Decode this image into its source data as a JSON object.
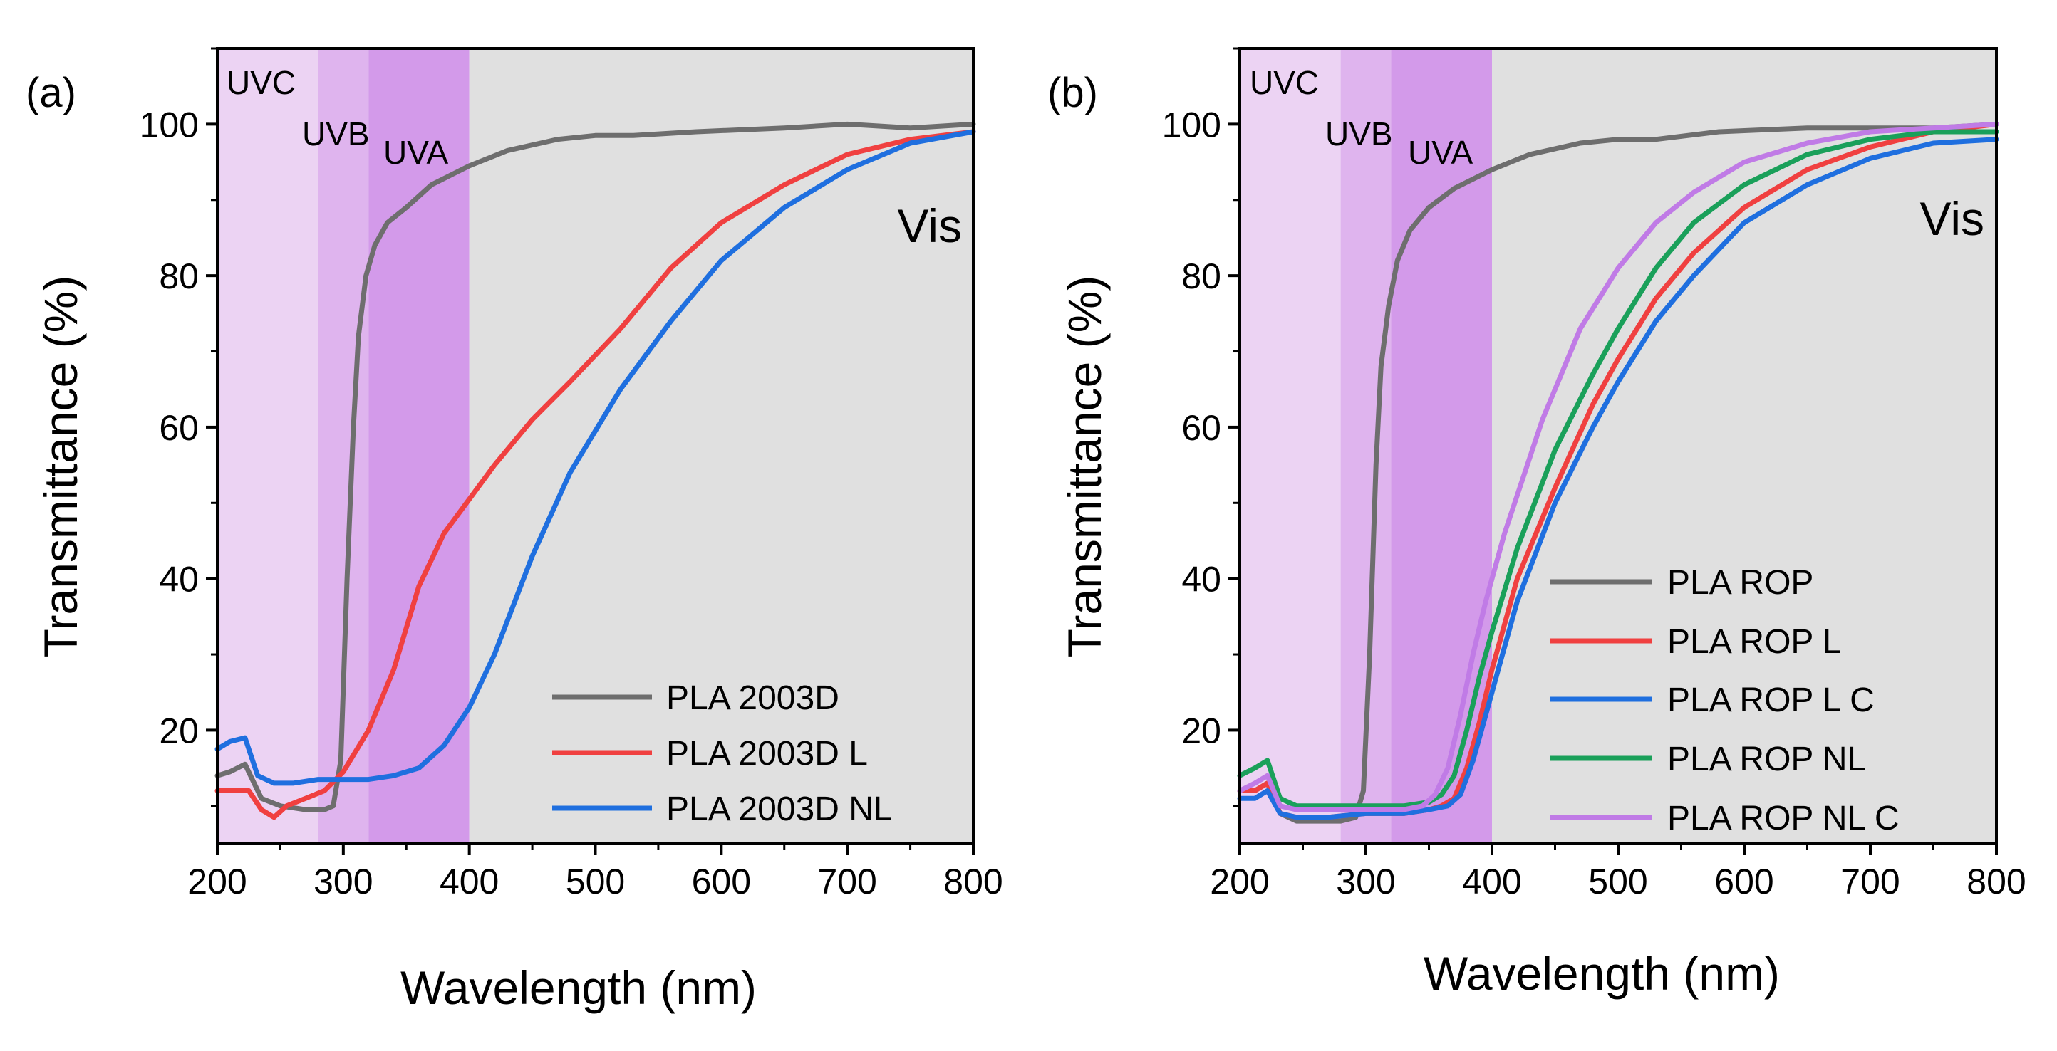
{
  "panels": [
    {
      "label": "(a)",
      "xlabel": "Wavelength (nm)",
      "ylabel": "Transmittance (%)",
      "region_uvc": "UVC",
      "region_uvb": "UVB",
      "region_uva": "UVA",
      "region_vis": "Vis",
      "legend": [
        "PLA 2003D",
        "PLA 2003D L",
        "PLA 2003D NL"
      ]
    },
    {
      "label": "(b)",
      "xlabel": "Wavelength (nm)",
      "ylabel": "Transmittance (%)",
      "region_uvc": "UVC",
      "region_uvb": "UVB",
      "region_uva": "UVA",
      "region_vis": "Vis",
      "legend": [
        "PLA ROP",
        "PLA ROP L",
        "PLA ROP L C",
        "PLA ROP NL",
        "PLA ROP NL C"
      ]
    }
  ],
  "colors": {
    "uvc": "#ecd3f3",
    "uvb": "#dfb4ee",
    "uva": "#d39aea",
    "vis": "#e0e0e0",
    "gray": "#6e6e6e",
    "red": "#f04040",
    "blue": "#1f6fdf",
    "green": "#1aa05a",
    "purple": "#c07be6"
  },
  "chart_data": [
    {
      "type": "line",
      "title": "(a)",
      "xlabel": "Wavelength (nm)",
      "ylabel": "Transmittance (%)",
      "xlim": [
        200,
        800
      ],
      "ylim": [
        5,
        110
      ],
      "xticks": [
        200,
        300,
        400,
        500,
        600,
        700,
        800
      ],
      "yticks": [
        20,
        40,
        60,
        80,
        100
      ],
      "regions": [
        {
          "name": "UVC",
          "from": 200,
          "to": 280
        },
        {
          "name": "UVB",
          "from": 280,
          "to": 320
        },
        {
          "name": "UVA",
          "from": 320,
          "to": 400
        },
        {
          "name": "Vis",
          "from": 400,
          "to": 800
        }
      ],
      "series": [
        {
          "name": "PLA 2003D",
          "color": "#6e6e6e",
          "x": [
            200,
            210,
            222,
            235,
            250,
            270,
            285,
            292,
            298,
            303,
            308,
            312,
            318,
            325,
            335,
            350,
            370,
            400,
            430,
            470,
            500,
            530,
            580,
            650,
            700,
            750,
            800
          ],
          "y": [
            14,
            14.5,
            15.5,
            11,
            10,
            9.5,
            9.5,
            10,
            16,
            40,
            60,
            72,
            80,
            84,
            87,
            89,
            92,
            94.5,
            96.5,
            98,
            98.5,
            98.5,
            99,
            99.5,
            100,
            99.5,
            100
          ]
        },
        {
          "name": "PLA 2003D L",
          "color": "#f04040",
          "x": [
            200,
            212,
            225,
            235,
            245,
            255,
            270,
            285,
            300,
            320,
            340,
            360,
            380,
            400,
            420,
            450,
            480,
            520,
            560,
            600,
            650,
            700,
            750,
            800
          ],
          "y": [
            12,
            12,
            12,
            9.5,
            8.5,
            10,
            11,
            12,
            14.5,
            20,
            28,
            39,
            46,
            50.5,
            55,
            61,
            66,
            73,
            81,
            87,
            92,
            96,
            98,
            99
          ]
        },
        {
          "name": "PLA 2003D NL",
          "color": "#1f6fdf",
          "x": [
            200,
            210,
            222,
            232,
            245,
            260,
            280,
            300,
            320,
            340,
            360,
            380,
            400,
            420,
            450,
            480,
            520,
            560,
            600,
            650,
            700,
            750,
            800
          ],
          "y": [
            17.5,
            18.5,
            19,
            14,
            13,
            13,
            13.5,
            13.5,
            13.5,
            14,
            15,
            18,
            23,
            30,
            43,
            54,
            65,
            74,
            82,
            89,
            94,
            97.5,
            99
          ]
        }
      ]
    },
    {
      "type": "line",
      "title": "(b)",
      "xlabel": "Wavelength (nm)",
      "ylabel": "Transmittance (%)",
      "xlim": [
        200,
        800
      ],
      "ylim": [
        5,
        110
      ],
      "xticks": [
        200,
        300,
        400,
        500,
        600,
        700,
        800
      ],
      "yticks": [
        20,
        40,
        60,
        80,
        100
      ],
      "regions": [
        {
          "name": "UVC",
          "from": 200,
          "to": 280
        },
        {
          "name": "UVB",
          "from": 280,
          "to": 320
        },
        {
          "name": "UVA",
          "from": 320,
          "to": 400
        },
        {
          "name": "Vis",
          "from": 400,
          "to": 800
        }
      ],
      "series": [
        {
          "name": "PLA ROP",
          "color": "#6e6e6e",
          "x": [
            200,
            212,
            222,
            232,
            245,
            260,
            280,
            292,
            298,
            303,
            308,
            312,
            318,
            325,
            335,
            350,
            370,
            400,
            430,
            470,
            500,
            530,
            580,
            650,
            700,
            750,
            800
          ],
          "y": [
            12,
            12,
            13,
            9,
            8,
            8,
            8,
            8.5,
            12,
            30,
            55,
            68,
            76,
            82,
            86,
            89,
            91.5,
            94,
            96,
            97.5,
            98,
            98,
            99,
            99.5,
            99.5,
            99.5,
            100
          ]
        },
        {
          "name": "PLA ROP L",
          "color": "#f04040",
          "x": [
            200,
            212,
            222,
            232,
            245,
            270,
            300,
            330,
            350,
            360,
            370,
            380,
            390,
            400,
            420,
            450,
            480,
            500,
            530,
            560,
            600,
            650,
            700,
            750,
            800
          ],
          "y": [
            12,
            12,
            13,
            9,
            8.5,
            8.5,
            9,
            9,
            9.5,
            10,
            11,
            15,
            21,
            28,
            40,
            52,
            63,
            69,
            77,
            83,
            89,
            94,
            97,
            99,
            100
          ]
        },
        {
          "name": "PLA ROP L C",
          "color": "#1f6fdf",
          "x": [
            200,
            212,
            222,
            232,
            245,
            270,
            300,
            330,
            350,
            365,
            375,
            385,
            395,
            405,
            420,
            450,
            480,
            500,
            530,
            560,
            600,
            650,
            700,
            750,
            800
          ],
          "y": [
            11,
            11,
            12,
            9,
            8.5,
            8.5,
            9,
            9,
            9.5,
            10,
            11.5,
            16,
            22,
            28,
            37,
            50,
            60,
            66,
            74,
            80,
            87,
            92,
            95.5,
            97.5,
            98
          ]
        },
        {
          "name": "PLA ROP NL",
          "color": "#1aa05a",
          "x": [
            200,
            212,
            222,
            232,
            245,
            270,
            300,
            330,
            350,
            360,
            370,
            380,
            390,
            400,
            420,
            450,
            480,
            500,
            530,
            560,
            600,
            650,
            700,
            750,
            800
          ],
          "y": [
            14,
            15,
            16,
            11,
            10,
            10,
            10,
            10,
            10.5,
            11.5,
            14,
            20,
            27,
            33,
            44,
            57,
            67,
            73,
            81,
            87,
            92,
            96,
            98,
            99,
            99
          ]
        },
        {
          "name": "PLA ROP NL C",
          "color": "#c07be6",
          "x": [
            200,
            212,
            222,
            232,
            245,
            270,
            300,
            330,
            345,
            355,
            365,
            375,
            385,
            395,
            410,
            440,
            470,
            500,
            530,
            560,
            600,
            650,
            700,
            750,
            800
          ],
          "y": [
            12,
            13,
            14,
            10,
            9.5,
            9.5,
            9.5,
            9.5,
            10,
            11.5,
            15,
            22,
            30,
            37,
            46,
            61,
            73,
            81,
            87,
            91,
            95,
            97.5,
            99,
            99.5,
            100
          ]
        }
      ]
    }
  ]
}
